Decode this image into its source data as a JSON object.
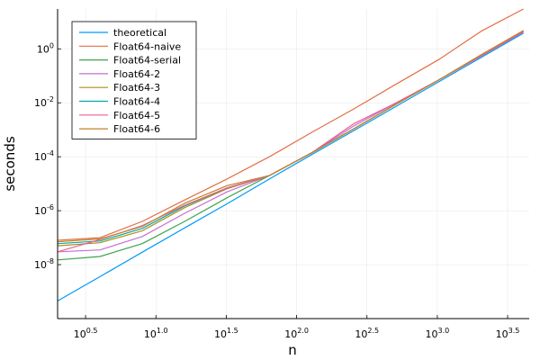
{
  "chart_data": {
    "type": "line",
    "xlabel": "n",
    "ylabel": "seconds",
    "x_scale": "log10",
    "y_scale": "log10",
    "xlim": [
      2,
      4500
    ],
    "ylim": [
      1e-10,
      30
    ],
    "grid": true,
    "legend_position": "top-left",
    "x_ticks": [
      {
        "value": 3.1623,
        "base": "10",
        "exp": "0.5"
      },
      {
        "value": 10,
        "base": "10",
        "exp": "1.0"
      },
      {
        "value": 31.623,
        "base": "10",
        "exp": "1.5"
      },
      {
        "value": 100,
        "base": "10",
        "exp": "2.0"
      },
      {
        "value": 316.23,
        "base": "10",
        "exp": "2.5"
      },
      {
        "value": 1000,
        "base": "10",
        "exp": "3.0"
      },
      {
        "value": 3162.3,
        "base": "10",
        "exp": "3.5"
      }
    ],
    "y_ticks": [
      {
        "value": 1e-08,
        "base": "10",
        "exp": "-8"
      },
      {
        "value": 1e-06,
        "base": "10",
        "exp": "-6"
      },
      {
        "value": 0.0001,
        "base": "10",
        "exp": "-4"
      },
      {
        "value": 0.01,
        "base": "10",
        "exp": "-2"
      },
      {
        "value": 1,
        "base": "10",
        "exp": "0"
      }
    ],
    "x": [
      2,
      4,
      8,
      16,
      32,
      64,
      128,
      256,
      512,
      1024,
      2048,
      4096
    ],
    "series": [
      {
        "name": "theoretical",
        "color": "#009af9",
        "values": [
          4.5e-10,
          3.6e-09,
          2.9e-08,
          2.3e-07,
          1.8e-06,
          1.5e-05,
          0.00012,
          0.00094,
          0.0075,
          0.06,
          0.48,
          3.8
        ]
      },
      {
        "name": "Float64-naive",
        "color": "#e26f46",
        "values": [
          8e-08,
          1e-07,
          4e-07,
          2.5e-06,
          1.5e-05,
          0.0001,
          0.0008,
          0.006,
          0.05,
          0.4,
          4.5,
          30
        ]
      },
      {
        "name": "Float64-serial",
        "color": "#3da44d",
        "values": [
          1.5e-08,
          2e-08,
          6e-08,
          4e-07,
          3e-06,
          2e-05,
          0.00014,
          0.0011,
          0.009,
          0.07,
          0.55,
          4.3
        ]
      },
      {
        "name": "Float64-2",
        "color": "#c271d2",
        "values": [
          3e-08,
          3.5e-08,
          1.1e-07,
          8e-07,
          5e-06,
          2e-05,
          0.00014,
          0.0014,
          0.01,
          0.07,
          0.55,
          4.3
        ]
      },
      {
        "name": "Float64-3",
        "color": "#ac8d18",
        "values": [
          5e-08,
          6.5e-08,
          1.8e-07,
          1.3e-06,
          6.5e-06,
          2e-05,
          0.00014,
          0.0011,
          0.009,
          0.07,
          0.6,
          4.6
        ]
      },
      {
        "name": "Float64-4",
        "color": "#00a9ad",
        "values": [
          6e-08,
          7.5e-08,
          2.2e-07,
          1.5e-06,
          7e-06,
          2e-05,
          0.00014,
          0.0011,
          0.009,
          0.07,
          0.55,
          4.3
        ]
      },
      {
        "name": "Float64-5",
        "color": "#ed5e93",
        "values": [
          3e-08,
          8.5e-08,
          2.8e-07,
          1.6e-06,
          7e-06,
          2e-05,
          0.00014,
          0.0017,
          0.01,
          0.07,
          0.55,
          4.3
        ]
      },
      {
        "name": "Float64-6",
        "color": "#c68125",
        "values": [
          7e-08,
          9e-08,
          2.6e-07,
          1.9e-06,
          8.5e-06,
          2e-05,
          0.00014,
          0.0011,
          0.009,
          0.07,
          0.6,
          4.8
        ]
      }
    ]
  }
}
